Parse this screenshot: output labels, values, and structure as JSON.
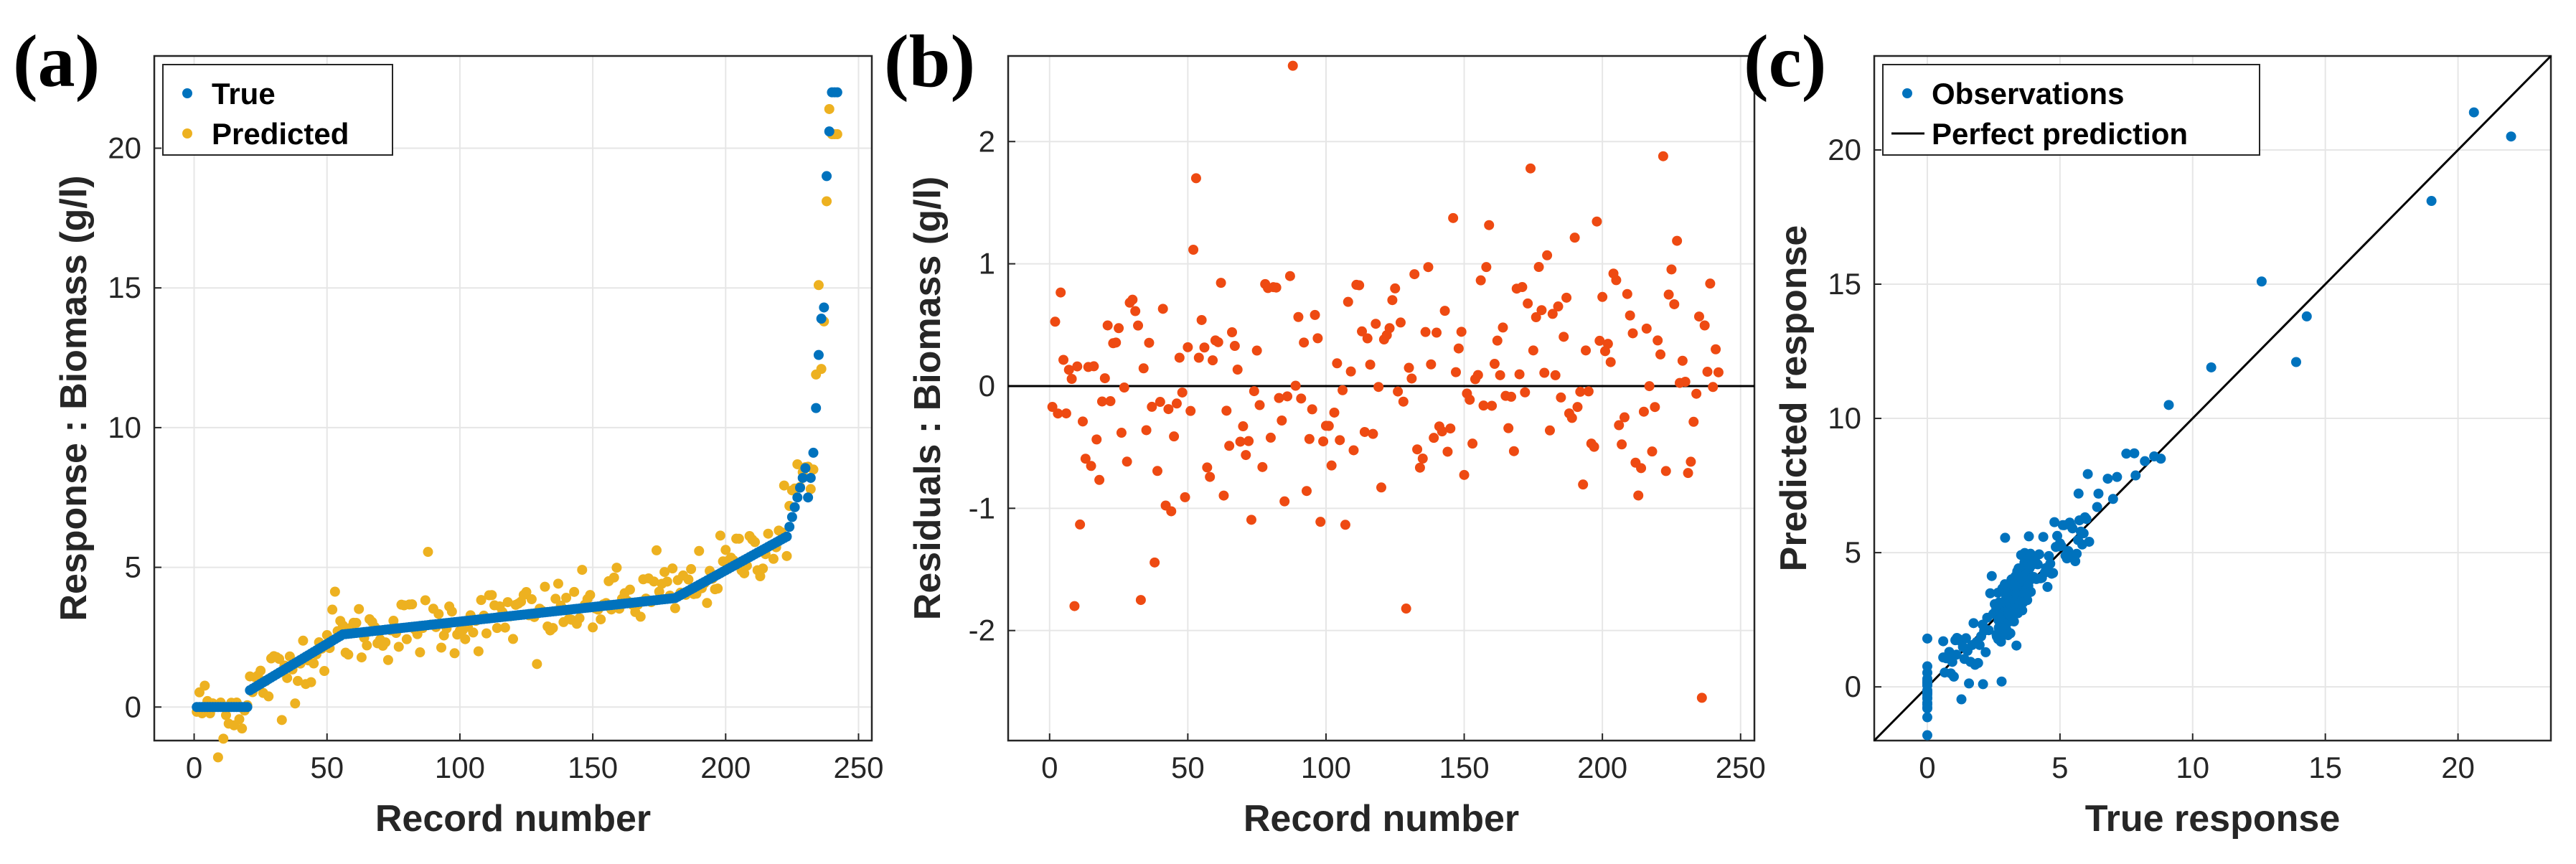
{
  "colors": {
    "true": "#0072bd",
    "predicted": "#edb120",
    "residual": "#ee4a12",
    "line": "#000000"
  },
  "chart_data": [
    {
      "panel": "(a)",
      "type": "scatter",
      "xlabel": "Record number",
      "ylabel": "Response : Biomass (g/l)",
      "xlim": [
        -15,
        255
      ],
      "ylim": [
        -1.2,
        23.3
      ],
      "xticks": [
        0,
        50,
        100,
        150,
        200,
        250
      ],
      "yticks": [
        0,
        5,
        10,
        15,
        20
      ],
      "grid": true,
      "legend": "top-left",
      "series": [
        {
          "name": "True",
          "color": "#0072bd",
          "generator": "sorted-true"
        },
        {
          "name": "Predicted",
          "color": "#edb120",
          "generator": "predicted"
        }
      ]
    },
    {
      "panel": "(b)",
      "type": "scatter",
      "xlabel": "Record number",
      "ylabel": "Residuals : Biomass (g/l)",
      "xlim": [
        -15,
        255
      ],
      "ylim": [
        -2.9,
        2.7
      ],
      "xticks": [
        0,
        50,
        100,
        150,
        200,
        250
      ],
      "yticks": [
        -2,
        -1,
        0,
        1,
        2
      ],
      "grid": true,
      "zero_line": true,
      "series": [
        {
          "name": "",
          "color": "#ee4a12",
          "generator": "residuals"
        }
      ]
    },
    {
      "panel": "(c)",
      "type": "scatter",
      "xlabel": "True response",
      "ylabel": "Predicted response",
      "xlim": [
        -2,
        23.5
      ],
      "ylim": [
        -2,
        23.5
      ],
      "xticks": [
        0,
        5,
        10,
        15,
        20
      ],
      "yticks": [
        0,
        5,
        10,
        15,
        20
      ],
      "grid": true,
      "legend": "top-left",
      "series": [
        {
          "name": "Observations",
          "color": "#0072bd",
          "generator": "observations"
        },
        {
          "name": "Perfect prediction",
          "color": "#000000",
          "type": "line",
          "x": [
            -2,
            23.5
          ],
          "y": [
            -2,
            23.5
          ]
        }
      ],
      "highlight_points": [
        {
          "x": 22.0,
          "y": 20.5
        },
        {
          "x": 20.6,
          "y": 21.4
        },
        {
          "x": 19.0,
          "y": 18.1
        },
        {
          "x": 14.3,
          "y": 13.8
        },
        {
          "x": 13.9,
          "y": 12.1
        },
        {
          "x": 12.6,
          "y": 15.1
        },
        {
          "x": 10.7,
          "y": 11.9
        },
        {
          "x": 9.1,
          "y": 10.5
        },
        {
          "x": 8.8,
          "y": 8.5
        },
        {
          "x": 7.8,
          "y": 8.7
        },
        {
          "x": 7.0,
          "y": 7.0
        },
        {
          "x": 6.4,
          "y": 6.7
        },
        {
          "x": 5.7,
          "y": 7.2
        },
        {
          "x": 2.1,
          "y": 0.1
        },
        {
          "x": 2.8,
          "y": 0.2
        },
        {
          "x": 1.1,
          "y": 1.2
        },
        {
          "x": 0.6,
          "y": 1.7
        },
        {
          "x": 0.0,
          "y": 1.8
        },
        {
          "x": 0.0,
          "y": -0.8
        },
        {
          "x": 0.0,
          "y": -0.4
        },
        {
          "x": 0.0,
          "y": 0.3
        }
      ]
    }
  ]
}
